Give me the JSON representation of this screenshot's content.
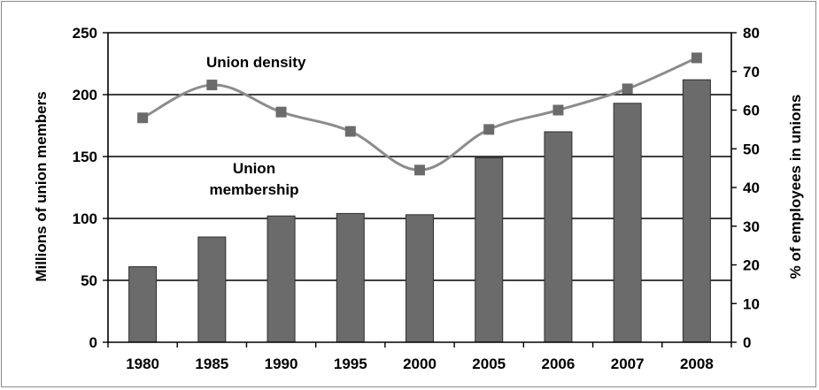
{
  "chart_data": {
    "type": "bar",
    "categories": [
      "1980",
      "1985",
      "1990",
      "1995",
      "2000",
      "2005",
      "2006",
      "2007",
      "2008"
    ],
    "series": [
      {
        "name": "Union membership",
        "type": "bar",
        "axis": "left",
        "values": [
          61,
          85,
          102,
          104,
          103,
          149,
          170,
          193,
          212
        ]
      },
      {
        "name": "Union density",
        "type": "line",
        "axis": "right",
        "values": [
          58,
          66.5,
          59.5,
          54.5,
          44.5,
          55,
          60,
          65.5,
          73.5
        ]
      }
    ],
    "ylabel": "Millions of union members",
    "ylabel_right": "% of employees in unions",
    "ylim": [
      0,
      250
    ],
    "ylim_right": [
      0,
      80
    ],
    "yticks": [
      "0",
      "50",
      "100",
      "150",
      "200",
      "250"
    ],
    "yticks_right": [
      "0",
      "10",
      "20",
      "30",
      "40",
      "50",
      "60",
      "70",
      "80"
    ],
    "annotations": {
      "density_label": "Union density",
      "membership_label_line1": "Union",
      "membership_label_line2": "membership"
    },
    "grid": "horizontal at left-axis ticks",
    "legend": "none",
    "colors": {
      "bar_fill": "#6b6b6b",
      "bar_stroke": "#2e2e2e",
      "line": "#8c8c8c",
      "marker": "#6b6b6b",
      "grid": "#000000"
    }
  }
}
